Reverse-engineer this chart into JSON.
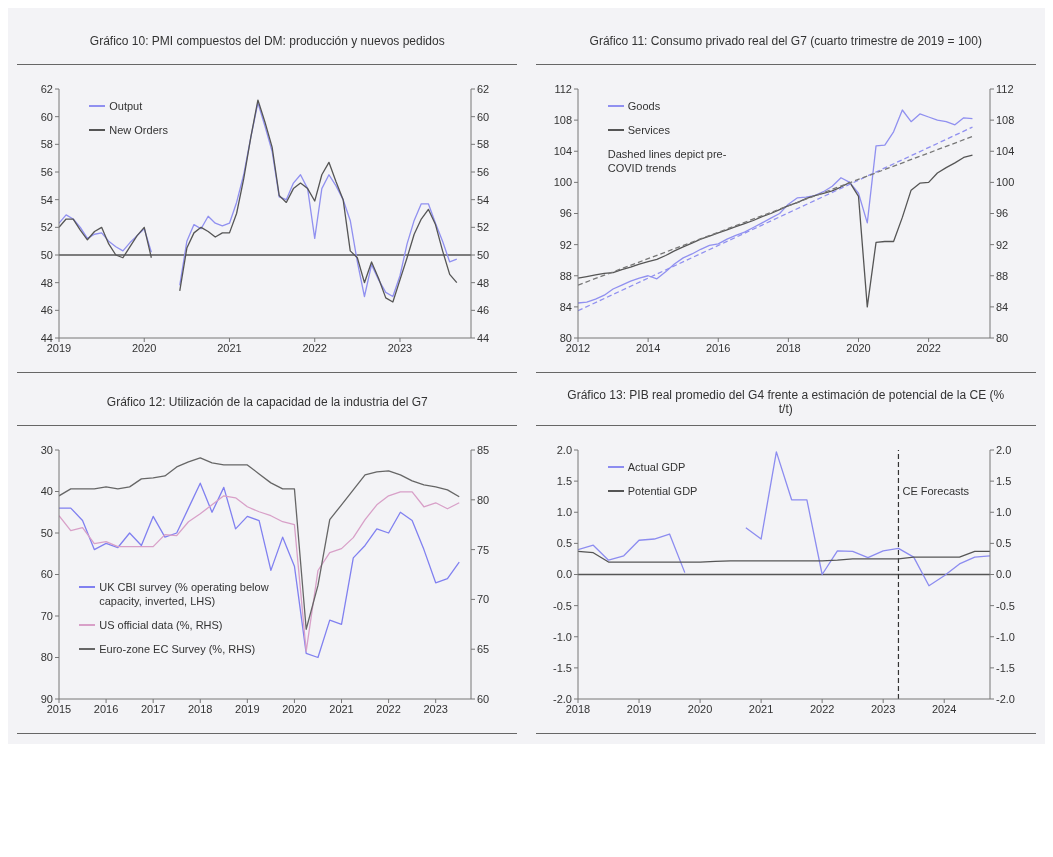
{
  "chart_data": [
    {
      "type": "line",
      "title": "Gráfico 10: PMI compuestos del DM: producción y nuevos pedidos",
      "x": [
        "2019-01",
        "2019-02",
        "2019-03",
        "2019-04",
        "2019-05",
        "2019-06",
        "2019-07",
        "2019-08",
        "2019-09",
        "2019-10",
        "2019-11",
        "2019-12",
        "2020-01",
        "2020-02",
        "2020-03",
        "2020-04",
        "2020-05",
        "2020-06",
        "2020-07",
        "2020-08",
        "2020-09",
        "2020-10",
        "2020-11",
        "2020-12",
        "2021-01",
        "2021-02",
        "2021-03",
        "2021-04",
        "2021-05",
        "2021-06",
        "2021-07",
        "2021-08",
        "2021-09",
        "2021-10",
        "2021-11",
        "2021-12",
        "2022-01",
        "2022-02",
        "2022-03",
        "2022-04",
        "2022-05",
        "2022-06",
        "2022-07",
        "2022-08",
        "2022-09",
        "2022-10",
        "2022-11",
        "2022-12",
        "2023-01",
        "2023-02",
        "2023-03",
        "2023-04",
        "2023-05",
        "2023-06",
        "2023-07",
        "2023-08",
        "2023-09"
      ],
      "series": [
        {
          "name": "Output",
          "color": "#9090f0",
          "values": [
            52.3,
            52.9,
            52.6,
            52.0,
            51.2,
            51.5,
            51.6,
            51.0,
            50.6,
            50.3,
            50.9,
            51.4,
            51.9,
            50.2,
            null,
            null,
            null,
            47.8,
            51.0,
            52.2,
            51.9,
            52.8,
            52.3,
            52.1,
            52.3,
            53.8,
            55.8,
            58.5,
            61.0,
            59.3,
            57.5,
            54.2,
            54.0,
            55.2,
            55.8,
            54.8,
            51.2,
            54.8,
            55.8,
            55.0,
            54.0,
            52.5,
            49.5,
            47.0,
            49.3,
            48.2,
            47.3,
            47.0,
            48.5,
            50.8,
            52.5,
            53.7,
            53.7,
            52.3,
            51.0,
            49.5,
            49.7
          ]
        },
        {
          "name": "New Orders",
          "color": "#555555",
          "values": [
            52.0,
            52.6,
            52.6,
            51.8,
            51.1,
            51.7,
            52.0,
            50.8,
            50.0,
            49.8,
            50.6,
            51.4,
            52.0,
            49.8,
            null,
            null,
            null,
            47.4,
            50.5,
            51.6,
            52.0,
            51.7,
            51.3,
            51.6,
            51.6,
            53.0,
            55.5,
            58.5,
            61.2,
            59.6,
            57.8,
            54.3,
            53.8,
            54.8,
            55.2,
            54.8,
            53.9,
            55.8,
            56.7,
            55.3,
            54.0,
            50.3,
            49.8,
            48.0,
            49.5,
            48.3,
            46.9,
            46.6,
            48.2,
            49.8,
            51.5,
            52.6,
            53.3,
            52.2,
            50.3,
            48.6,
            48.0
          ]
        }
      ],
      "xlim": [
        "2019",
        "2023-11"
      ],
      "xticks": [
        "2019",
        "2020",
        "2021",
        "2022",
        "2023"
      ],
      "ylim": [
        44,
        62
      ],
      "yticks": [
        44,
        46,
        48,
        50,
        52,
        54,
        56,
        58,
        60,
        62
      ],
      "y2lim": [
        44,
        62
      ],
      "y2ticks": [
        44,
        46,
        48,
        50,
        52,
        54,
        56,
        58,
        60,
        62
      ],
      "ref_lines": [
        {
          "axis": "y",
          "value": 50,
          "color": "#555555"
        }
      ],
      "legend": "top left"
    },
    {
      "type": "line",
      "title": "Gráfico 11: Consumo privado real del G7 (cuarto trimestre de 2019 = 100)",
      "x": [
        "2012-01",
        "2012-04",
        "2012-07",
        "2012-10",
        "2013-01",
        "2013-04",
        "2013-07",
        "2013-10",
        "2014-01",
        "2014-04",
        "2014-07",
        "2014-10",
        "2015-01",
        "2015-04",
        "2015-07",
        "2015-10",
        "2016-01",
        "2016-04",
        "2016-07",
        "2016-10",
        "2017-01",
        "2017-04",
        "2017-07",
        "2017-10",
        "2018-01",
        "2018-04",
        "2018-07",
        "2018-10",
        "2019-01",
        "2019-04",
        "2019-07",
        "2019-10",
        "2020-01",
        "2020-04",
        "2020-07",
        "2020-10",
        "2021-01",
        "2021-04",
        "2021-07",
        "2021-10",
        "2022-01",
        "2022-04",
        "2022-07",
        "2022-10",
        "2023-01",
        "2023-04"
      ],
      "series": [
        {
          "name": "Goods",
          "color": "#9090f0",
          "values": [
            84.5,
            84.6,
            85.0,
            85.5,
            86.3,
            86.8,
            87.3,
            87.7,
            88.0,
            87.6,
            88.5,
            89.5,
            90.3,
            90.8,
            91.4,
            91.9,
            92.1,
            92.7,
            93.2,
            93.6,
            94.2,
            94.8,
            95.4,
            96.0,
            97.2,
            98.0,
            98.1,
            98.3,
            98.8,
            99.5,
            100.6,
            100.0,
            98.6,
            94.8,
            104.7,
            104.8,
            106.5,
            109.3,
            107.8,
            108.8,
            108.4,
            108.0,
            107.8,
            107.4,
            108.3,
            108.2
          ]
        },
        {
          "name": "Services",
          "color": "#555555",
          "values": [
            87.7,
            87.9,
            88.1,
            88.3,
            88.4,
            88.8,
            89.1,
            89.5,
            89.8,
            90.1,
            90.6,
            91.2,
            91.7,
            92.2,
            92.7,
            93.1,
            93.5,
            93.9,
            94.3,
            94.7,
            95.1,
            95.6,
            96.0,
            96.5,
            97.0,
            97.4,
            97.9,
            98.3,
            98.6,
            98.9,
            99.4,
            100.0,
            98.2,
            84.0,
            92.3,
            92.4,
            92.4,
            95.5,
            99.0,
            99.9,
            100.0,
            101.2,
            101.9,
            102.5,
            103.2,
            103.5
          ]
        },
        {
          "type": "line",
          "color": "#9090f0",
          "line_style": "dashed",
          "x": [
            "2012-01",
            "2023-04"
          ],
          "values": [
            83.5,
            107.1
          ]
        },
        {
          "type": "line",
          "color": "#777777",
          "line_style": "dashed",
          "x": [
            "2012-01",
            "2023-04"
          ],
          "values": [
            86.8,
            105.9
          ]
        }
      ],
      "xlim": [
        "2012",
        "2023-10"
      ],
      "xticks": [
        "2012",
        "2014",
        "2016",
        "2018",
        "2020",
        "2022"
      ],
      "ylim": [
        80,
        112
      ],
      "yticks": [
        80,
        84,
        88,
        92,
        96,
        100,
        104,
        108,
        112
      ],
      "y2lim": [
        80,
        112
      ],
      "y2ticks": [
        80,
        84,
        88,
        92,
        96,
        100,
        104,
        108,
        112
      ],
      "annotations": [
        "Dashed lines depict pre-COVID trends"
      ],
      "legend": "top left"
    },
    {
      "type": "line",
      "title": "Gráfico 12: Utilización de la capacidad de la industria del G7",
      "x": [
        "2015-01",
        "2015-04",
        "2015-07",
        "2015-10",
        "2016-01",
        "2016-04",
        "2016-07",
        "2016-10",
        "2017-01",
        "2017-04",
        "2017-07",
        "2017-10",
        "2018-01",
        "2018-04",
        "2018-07",
        "2018-10",
        "2019-01",
        "2019-04",
        "2019-07",
        "2019-10",
        "2020-01",
        "2020-04",
        "2020-07",
        "2020-10",
        "2021-01",
        "2021-04",
        "2021-07",
        "2021-10",
        "2022-01",
        "2022-04",
        "2022-07",
        "2022-10",
        "2023-01",
        "2023-04",
        "2023-07"
      ],
      "series": [
        {
          "name": "UK CBI survey (% operating below capacity, inverted, LHS)",
          "color": "#8080f0",
          "values": [
            44,
            44,
            47,
            54,
            52.5,
            53.5,
            50,
            53,
            46,
            51,
            50,
            44,
            38,
            45,
            39,
            49,
            46,
            47,
            59,
            51,
            58,
            79,
            80,
            71,
            72,
            56,
            53,
            49,
            50,
            45,
            47,
            54,
            62,
            61,
            57
          ]
        },
        {
          "name": "US official data (%, RHS)",
          "color": "#d8a0c8",
          "axis": "y2",
          "values": [
            78.4,
            76.9,
            77.2,
            75.6,
            75.8,
            75.3,
            75.3,
            75.3,
            75.3,
            76.5,
            76.4,
            77.8,
            78.6,
            79.5,
            80.4,
            80.2,
            79.3,
            78.8,
            78.4,
            77.8,
            77.5,
            64.8,
            72.9,
            74.7,
            75.1,
            76.2,
            78.0,
            79.5,
            80.4,
            80.8,
            80.8,
            79.3,
            79.7,
            79.1,
            79.7
          ]
        },
        {
          "name": "Euro-zone EC Survey (%, RHS)",
          "color": "#666666",
          "axis": "y2",
          "values": [
            80.4,
            81.1,
            81.1,
            81.1,
            81.3,
            81.1,
            81.3,
            82.1,
            82.2,
            82.4,
            83.3,
            83.8,
            84.2,
            83.7,
            83.5,
            83.5,
            83.5,
            82.6,
            81.7,
            81.1,
            81.1,
            67.0,
            71.4,
            78.0,
            79.5,
            81.0,
            82.5,
            82.8,
            82.9,
            82.5,
            81.9,
            81.5,
            81.3,
            81.0,
            80.3
          ]
        }
      ],
      "xlim": [
        "2015",
        "2023-10"
      ],
      "xticks": [
        "2015",
        "2016",
        "2017",
        "2018",
        "2019",
        "2020",
        "2021",
        "2022",
        "2023"
      ],
      "ylim": [
        90,
        30
      ],
      "yticks": [
        30,
        40,
        50,
        60,
        70,
        80,
        90
      ],
      "y2lim": [
        60,
        85
      ],
      "y2ticks": [
        60,
        65,
        70,
        75,
        80,
        85
      ],
      "legend": "left"
    },
    {
      "type": "line",
      "title": "Gráfico 13: PIB real promedio del G4 frente a estimación de potencial de la CE (% t/t)",
      "x": [
        "2018-01",
        "2018-04",
        "2018-07",
        "2018-10",
        "2019-01",
        "2019-04",
        "2019-07",
        "2019-10",
        "2020-01",
        "2020-04",
        "2020-07",
        "2020-10",
        "2021-01",
        "2021-04",
        "2021-07",
        "2021-10",
        "2022-01",
        "2022-04",
        "2022-07",
        "2022-10",
        "2023-01",
        "2023-04",
        "2023-07",
        "2023-10",
        "2024-01",
        "2024-04",
        "2024-07",
        "2024-10"
      ],
      "series": [
        {
          "name": "Actual GDP",
          "color": "#8c8cf0",
          "values": [
            0.4,
            0.47,
            0.23,
            0.3,
            0.55,
            0.57,
            0.65,
            0.03,
            null,
            null,
            null,
            0.75,
            0.57,
            1.97,
            1.2,
            1.2,
            0.0,
            0.38,
            0.37,
            0.27,
            0.38,
            0.42,
            0.28,
            -0.18,
            -0.02,
            0.17,
            0.28,
            0.3
          ]
        },
        {
          "name": "Potential GDP",
          "color": "#555555",
          "values": [
            0.37,
            0.35,
            0.2,
            0.2,
            0.2,
            0.2,
            0.2,
            0.2,
            0.2,
            0.21,
            0.22,
            0.22,
            0.22,
            0.22,
            0.22,
            0.22,
            0.22,
            0.23,
            0.25,
            0.25,
            0.25,
            0.25,
            0.28,
            0.28,
            0.28,
            0.28,
            0.37,
            0.37
          ]
        }
      ],
      "xlim": [
        "2018",
        "2024-10"
      ],
      "xticks": [
        "2018",
        "2019",
        "2020",
        "2021",
        "2022",
        "2023",
        "2024"
      ],
      "ylim": [
        -2,
        2
      ],
      "yticks": [
        {
          "value": -2,
          "label": "-2.0"
        },
        {
          "value": -1.5,
          "label": "-1.5"
        },
        {
          "value": -1,
          "label": "-1.0"
        },
        {
          "value": -0.5,
          "label": "-0.5"
        },
        {
          "value": 0,
          "label": "0.0"
        },
        {
          "value": 0.5,
          "label": "0.5"
        },
        {
          "value": 1,
          "label": "1.0"
        },
        {
          "value": 1.5,
          "label": "1.5"
        },
        {
          "value": 2,
          "label": "2.0"
        }
      ],
      "y2lim": [
        -2,
        2
      ],
      "y2ticks": [
        {
          "value": -2,
          "label": "-2.0"
        },
        {
          "value": -1.5,
          "label": "-1.5"
        },
        {
          "value": -1,
          "label": "-1.0"
        },
        {
          "value": -0.5,
          "label": "-0.5"
        },
        {
          "value": 0,
          "label": "0.0"
        },
        {
          "value": 0.5,
          "label": "0.5"
        },
        {
          "value": 1,
          "label": "1.0"
        },
        {
          "value": 1.5,
          "label": "1.5"
        },
        {
          "value": 2,
          "label": "2.0"
        }
      ],
      "ref_lines": [
        {
          "axis": "y",
          "value": 0,
          "color": "#555555"
        },
        {
          "axis": "x",
          "value": "2023-04",
          "label": "CE Forecasts",
          "color": "#333333",
          "line_style": "dashed"
        }
      ],
      "legend": "top left"
    }
  ]
}
